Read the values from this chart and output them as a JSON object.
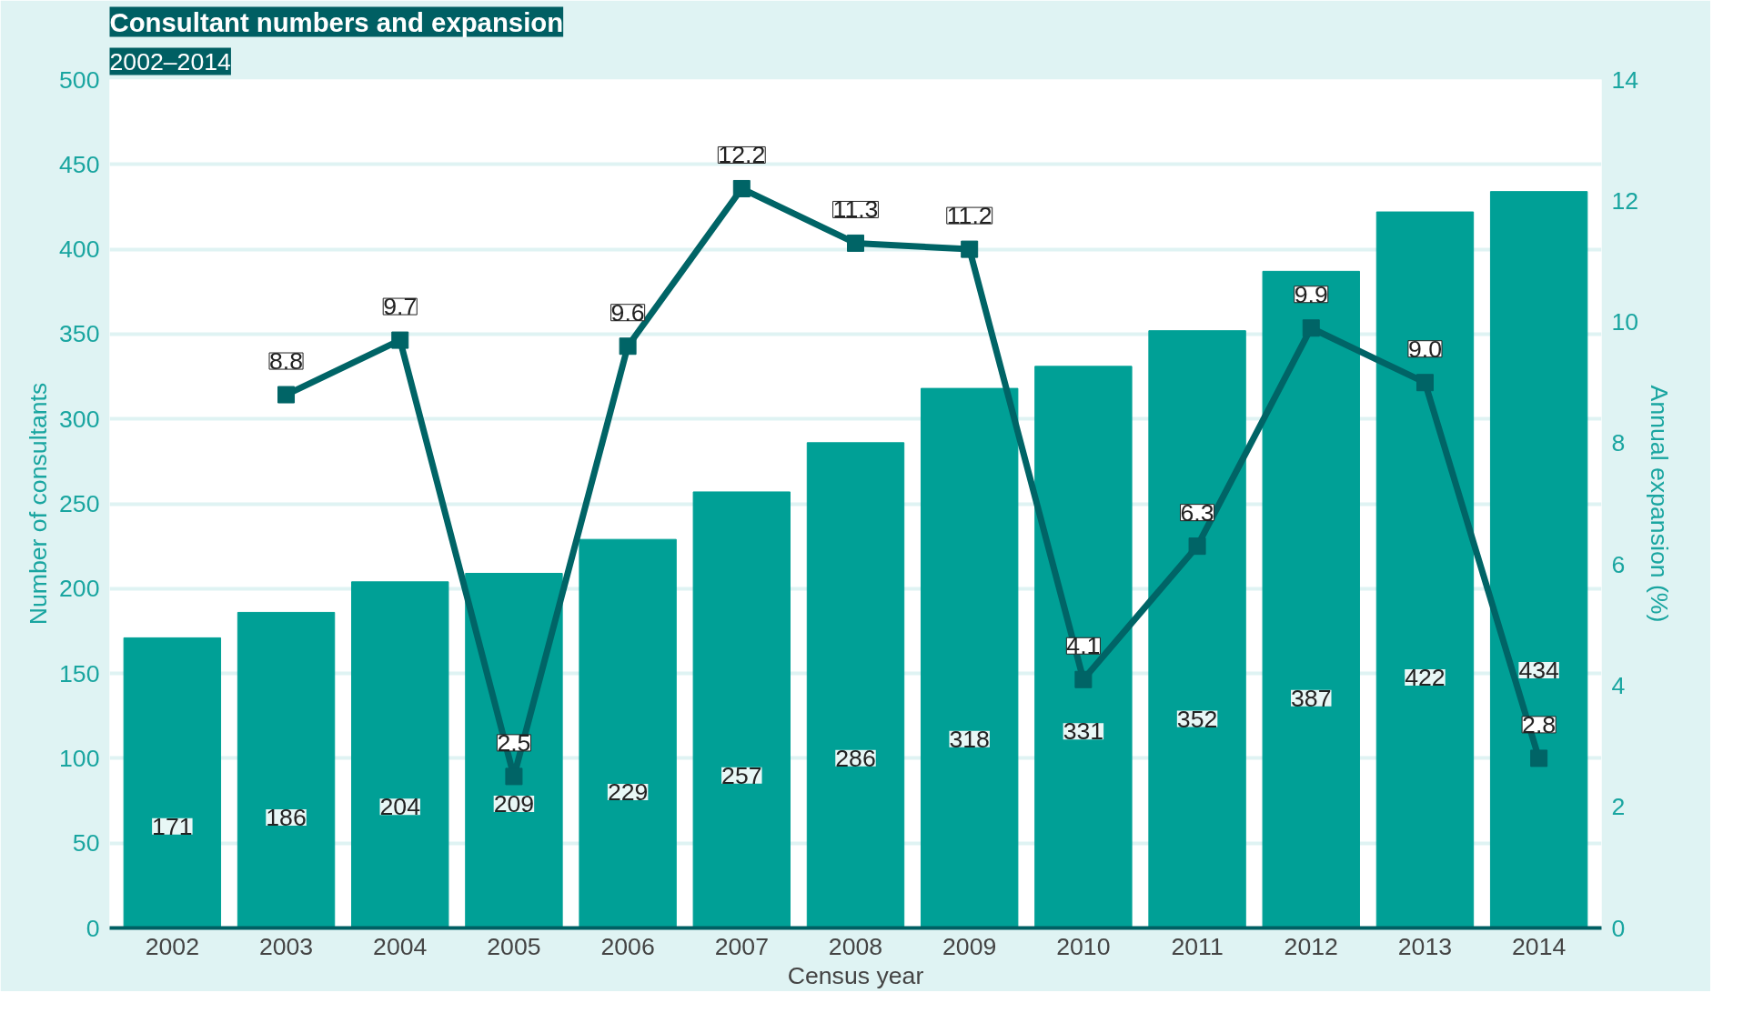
{
  "chart_data": {
    "type": "bar",
    "title": "Consultant numbers and expansion",
    "subtitle": "2002–2014",
    "xlabel": "Census year",
    "ylabel": "Number of consultants",
    "y2label": "Annual expansion (%)",
    "categories": [
      "2002",
      "2003",
      "2004",
      "2005",
      "2006",
      "2007",
      "2008",
      "2009",
      "2010",
      "2011",
      "2012",
      "2013",
      "2014"
    ],
    "series": [
      {
        "color": "#00a096",
        "values": [
          171,
          186,
          204,
          209,
          229,
          257,
          286,
          318,
          331,
          352,
          387,
          422,
          434
        ]
      },
      {
        "type": "line",
        "axis": "y2",
        "color": "#006466",
        "values": [
          null,
          8.8,
          9.7,
          2.5,
          9.6,
          12.2,
          11.3,
          11.2,
          4.1,
          6.3,
          9.9,
          9.0,
          2.8
        ],
        "value_labels": [
          null,
          "8.8",
          "9.7",
          "2.5",
          "9.6",
          "12.2",
          "11.3",
          "11.2",
          "4.1",
          "6.3",
          "9.9",
          "9.0",
          "2.8"
        ]
      }
    ],
    "marker": "square",
    "line_style": "solid",
    "data_labels": true,
    "grid": "y",
    "ylim": [
      0,
      500
    ],
    "yticks": [
      0,
      50,
      100,
      150,
      200,
      250,
      300,
      350,
      400,
      450,
      500
    ],
    "y2lim": [
      0,
      14
    ],
    "y2ticks": [
      0,
      2,
      4,
      6,
      8,
      10,
      12,
      14
    ]
  }
}
